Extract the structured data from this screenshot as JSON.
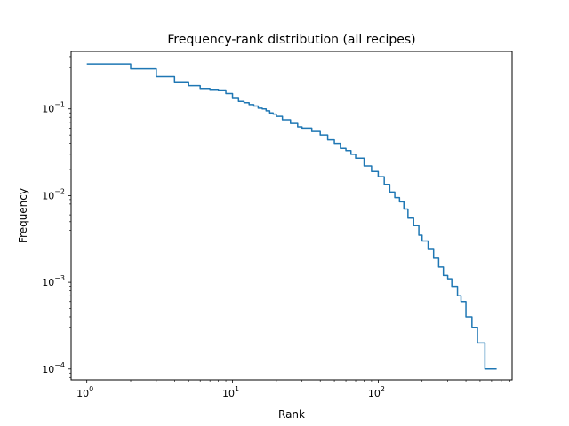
{
  "chart_data": {
    "type": "line",
    "title": "Frequency-rank distribution (all recipes)",
    "xlabel": "Rank",
    "ylabel": "Frequency",
    "xscale": "log",
    "yscale": "log",
    "xlim": [
      0.78,
      830
    ],
    "ylim": [
      7.5e-05,
      0.46
    ],
    "grid": false,
    "line_color": "#1f77b4",
    "x_ticks": [
      {
        "base": "10",
        "exp": "0",
        "value": 1
      },
      {
        "base": "10",
        "exp": "1",
        "value": 10
      },
      {
        "base": "10",
        "exp": "2",
        "value": 100
      }
    ],
    "y_ticks": [
      {
        "base": "10",
        "exp": "−4",
        "value": 0.0001
      },
      {
        "base": "10",
        "exp": "−3",
        "value": 0.001
      },
      {
        "base": "10",
        "exp": "−2",
        "value": 0.01
      },
      {
        "base": "10",
        "exp": "−1",
        "value": 0.1
      }
    ],
    "series": [
      {
        "x": [
          1,
          2,
          3,
          4,
          5,
          6,
          7,
          8,
          9,
          10,
          11,
          12,
          13,
          14,
          15,
          16,
          17,
          18,
          19,
          20,
          22,
          25,
          28,
          30,
          35,
          40,
          45,
          50,
          55,
          60,
          65,
          70,
          80,
          90,
          100,
          110,
          120,
          130,
          140,
          150,
          160,
          175,
          190,
          200,
          220,
          240,
          260,
          280,
          300,
          320,
          350,
          370,
          400,
          440,
          480,
          530,
          540,
          650
        ],
        "y": [
          0.33,
          0.29,
          0.235,
          0.205,
          0.185,
          0.172,
          0.168,
          0.165,
          0.15,
          0.135,
          0.122,
          0.118,
          0.112,
          0.108,
          0.102,
          0.1,
          0.095,
          0.09,
          0.087,
          0.082,
          0.075,
          0.068,
          0.062,
          0.06,
          0.055,
          0.05,
          0.044,
          0.04,
          0.035,
          0.033,
          0.03,
          0.027,
          0.022,
          0.019,
          0.0165,
          0.0135,
          0.011,
          0.0095,
          0.0085,
          0.007,
          0.0055,
          0.0045,
          0.0035,
          0.003,
          0.0024,
          0.0019,
          0.0015,
          0.0012,
          0.0011,
          0.0009,
          0.0007,
          0.0006,
          0.0004,
          0.0003,
          0.0002,
          0.0002,
          0.0001,
          0.0001
        ]
      }
    ]
  }
}
